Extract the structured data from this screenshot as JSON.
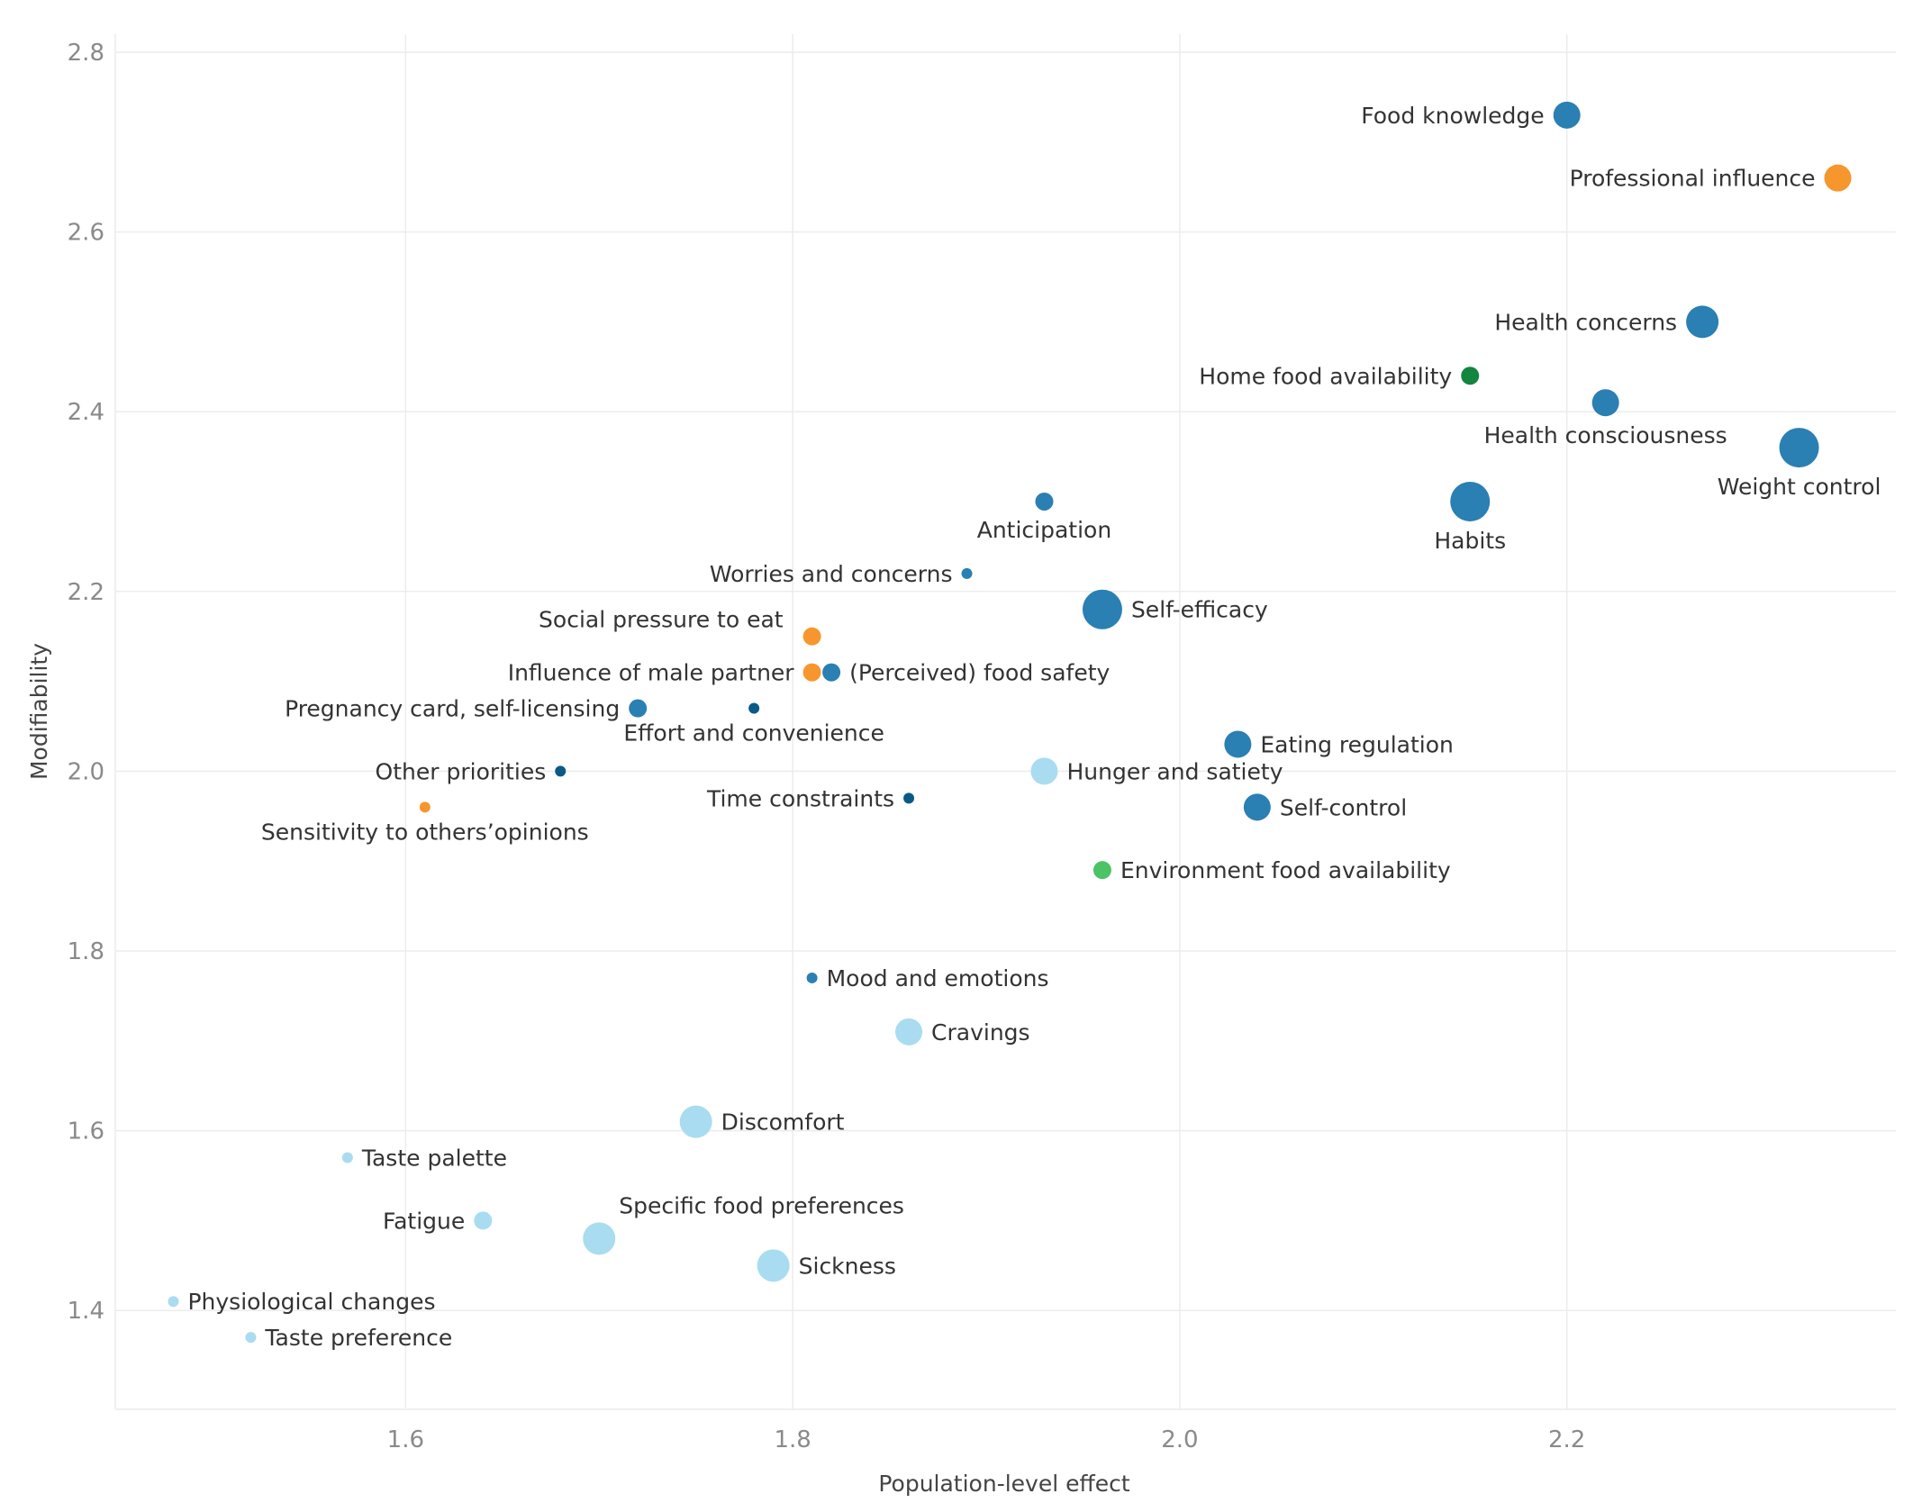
{
  "chart_data": {
    "type": "scatter",
    "title": "",
    "xlabel": "Population-level effect",
    "ylabel": "Modifiability",
    "xlim": [
      1.45,
      2.37
    ],
    "ylim": [
      1.29,
      2.82
    ],
    "xticks": [
      "1.6",
      "1.8",
      "2.0",
      "2.2"
    ],
    "xtick_values": [
      1.6,
      1.8,
      2.0,
      2.2
    ],
    "yticks": [
      "1.4",
      "1.6",
      "1.8",
      "2.0",
      "2.2",
      "2.4",
      "2.6",
      "2.8"
    ],
    "ytick_values": [
      1.4,
      1.6,
      1.8,
      2.0,
      2.2,
      2.4,
      2.6,
      2.8
    ],
    "grid": true,
    "colors": {
      "dark_blue": "#0a5a86",
      "blue": "#2a7fb3",
      "light_blue": "#a9dcf0",
      "orange": "#f7962d",
      "dark_green": "#12853f",
      "green": "#4cc364"
    },
    "points": [
      {
        "label": "Food knowledge",
        "x": 2.2,
        "y": 2.73,
        "size": 3,
        "color": "blue",
        "label_pos": "left"
      },
      {
        "label": "Professional influence",
        "x": 2.34,
        "y": 2.66,
        "size": 3,
        "color": "orange",
        "label_pos": "left"
      },
      {
        "label": "Health concerns",
        "x": 2.27,
        "y": 2.5,
        "size": 4,
        "color": "blue",
        "label_pos": "left"
      },
      {
        "label": "Home food availability",
        "x": 2.15,
        "y": 2.44,
        "size": 2,
        "color": "dark_green",
        "label_pos": "left"
      },
      {
        "label": "Health consciousness",
        "x": 2.22,
        "y": 2.41,
        "size": 3,
        "color": "blue",
        "label_pos": "below"
      },
      {
        "label": "Weight control",
        "x": 2.32,
        "y": 2.36,
        "size": 5,
        "color": "blue",
        "label_pos": "below"
      },
      {
        "label": "Habits",
        "x": 2.15,
        "y": 2.3,
        "size": 5,
        "color": "blue",
        "label_pos": "below"
      },
      {
        "label": "Anticipation",
        "x": 1.93,
        "y": 2.3,
        "size": 2,
        "color": "blue",
        "label_pos": "below"
      },
      {
        "label": "Worries and concerns",
        "x": 1.89,
        "y": 2.22,
        "size": 1,
        "color": "blue",
        "label_pos": "left"
      },
      {
        "label": "Self-efficacy",
        "x": 1.96,
        "y": 2.18,
        "size": 5,
        "color": "blue",
        "label_pos": "right"
      },
      {
        "label": "Social pressure to eat",
        "x": 1.81,
        "y": 2.15,
        "size": 2,
        "color": "orange",
        "label_pos": "upper-left"
      },
      {
        "label": "Influence of male partner",
        "x": 1.81,
        "y": 2.11,
        "size": 2,
        "color": "orange",
        "label_pos": "left"
      },
      {
        "label": "(Perceived) food safety",
        "x": 1.82,
        "y": 2.11,
        "size": 2,
        "color": "blue",
        "label_pos": "right"
      },
      {
        "label": "Pregnancy card, self-licensing",
        "x": 1.72,
        "y": 2.07,
        "size": 2,
        "color": "blue",
        "label_pos": "left"
      },
      {
        "label": "Effort and convenience",
        "x": 1.78,
        "y": 2.07,
        "size": 1,
        "color": "dark_blue",
        "label_pos": "below"
      },
      {
        "label": "Eating regulation",
        "x": 2.03,
        "y": 2.03,
        "size": 3,
        "color": "blue",
        "label_pos": "right"
      },
      {
        "label": "Other priorities",
        "x": 1.68,
        "y": 2.0,
        "size": 1,
        "color": "dark_blue",
        "label_pos": "left"
      },
      {
        "label": "Hunger and satiety",
        "x": 1.93,
        "y": 2.0,
        "size": 3,
        "color": "light_blue",
        "label_pos": "right"
      },
      {
        "label": "Time constraints",
        "x": 1.86,
        "y": 1.97,
        "size": 1,
        "color": "dark_blue",
        "label_pos": "left"
      },
      {
        "label": "Sensitivity to others’opinions",
        "x": 1.61,
        "y": 1.96,
        "size": 1,
        "color": "orange",
        "label_pos": "below"
      },
      {
        "label": "Self-control",
        "x": 2.04,
        "y": 1.96,
        "size": 3,
        "color": "blue",
        "label_pos": "right"
      },
      {
        "label": "Environment food availability",
        "x": 1.96,
        "y": 1.89,
        "size": 2,
        "color": "green",
        "label_pos": "right"
      },
      {
        "label": "Mood and emotions",
        "x": 1.81,
        "y": 1.77,
        "size": 1,
        "color": "blue",
        "label_pos": "right"
      },
      {
        "label": "Cravings",
        "x": 1.86,
        "y": 1.71,
        "size": 3,
        "color": "light_blue",
        "label_pos": "right"
      },
      {
        "label": "Discomfort",
        "x": 1.75,
        "y": 1.61,
        "size": 4,
        "color": "light_blue",
        "label_pos": "right"
      },
      {
        "label": "Taste palette",
        "x": 1.57,
        "y": 1.57,
        "size": 1,
        "color": "light_blue",
        "label_pos": "right"
      },
      {
        "label": "Fatigue",
        "x": 1.64,
        "y": 1.5,
        "size": 2,
        "color": "light_blue",
        "label_pos": "left"
      },
      {
        "label": "Specific food preferences",
        "x": 1.7,
        "y": 1.48,
        "size": 4,
        "color": "light_blue",
        "label_pos": "upper-right"
      },
      {
        "label": "Sickness",
        "x": 1.79,
        "y": 1.45,
        "size": 4,
        "color": "light_blue",
        "label_pos": "right"
      },
      {
        "label": "Physiological changes",
        "x": 1.48,
        "y": 1.41,
        "size": 1,
        "color": "light_blue",
        "label_pos": "right"
      },
      {
        "label": "Taste preference",
        "x": 1.52,
        "y": 1.37,
        "size": 1,
        "color": "light_blue",
        "label_pos": "right"
      }
    ]
  }
}
